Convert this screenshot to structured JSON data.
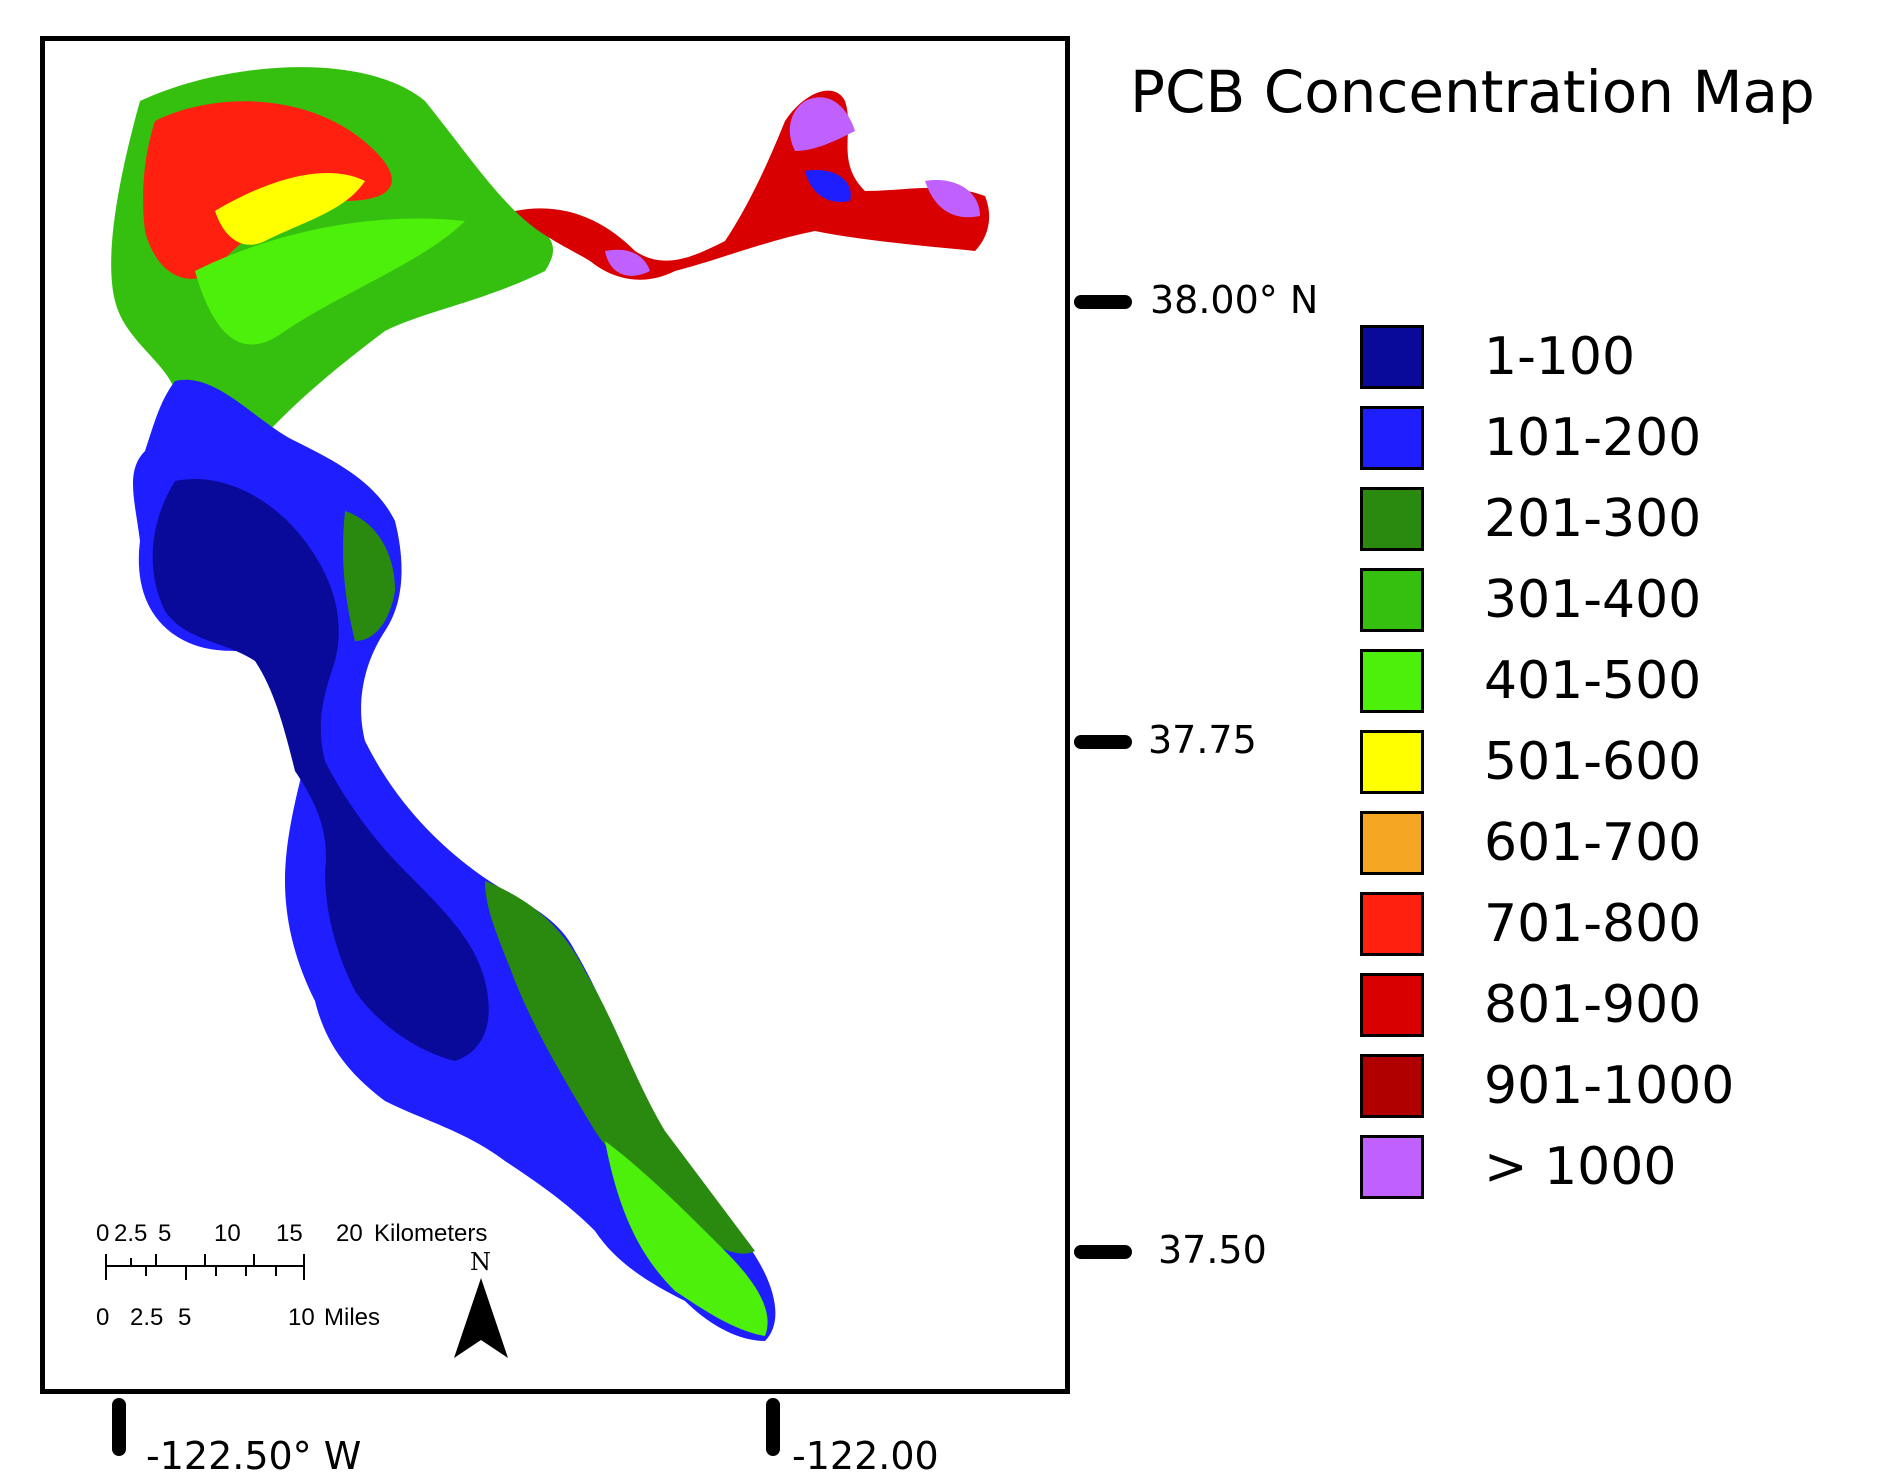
{
  "title": "PCB Concentration Map",
  "latitude_labels": [
    "38.00° N",
    "37.75",
    "37.50"
  ],
  "longitude_labels": [
    "-122.50° W",
    "-122.00"
  ],
  "legend": [
    {
      "label": "1-100",
      "color": "#0a0a9a"
    },
    {
      "label": "101-200",
      "color": "#1e1eff"
    },
    {
      "label": "201-300",
      "color": "#2a8a10"
    },
    {
      "label": "301-400",
      "color": "#35c010"
    },
    {
      "label": "401-500",
      "color": "#4cf00a"
    },
    {
      "label": "501-600",
      "color": "#ffff00"
    },
    {
      "label": "601-700",
      "color": "#f5a623"
    },
    {
      "label": "701-800",
      "color": "#ff2010"
    },
    {
      "label": "801-900",
      "color": "#d80000"
    },
    {
      "label": "901-1000",
      "color": "#b00000"
    },
    {
      "label": "> 1000",
      "color": "#c060ff"
    }
  ],
  "scale_bar": {
    "km_ticks": [
      "0",
      "2.5",
      "5",
      "10",
      "15",
      "20"
    ],
    "km_unit": "Kilometers",
    "mile_ticks": [
      "0",
      "2.5",
      "5",
      "10"
    ],
    "mile_unit": "Miles"
  },
  "north_label": "N"
}
